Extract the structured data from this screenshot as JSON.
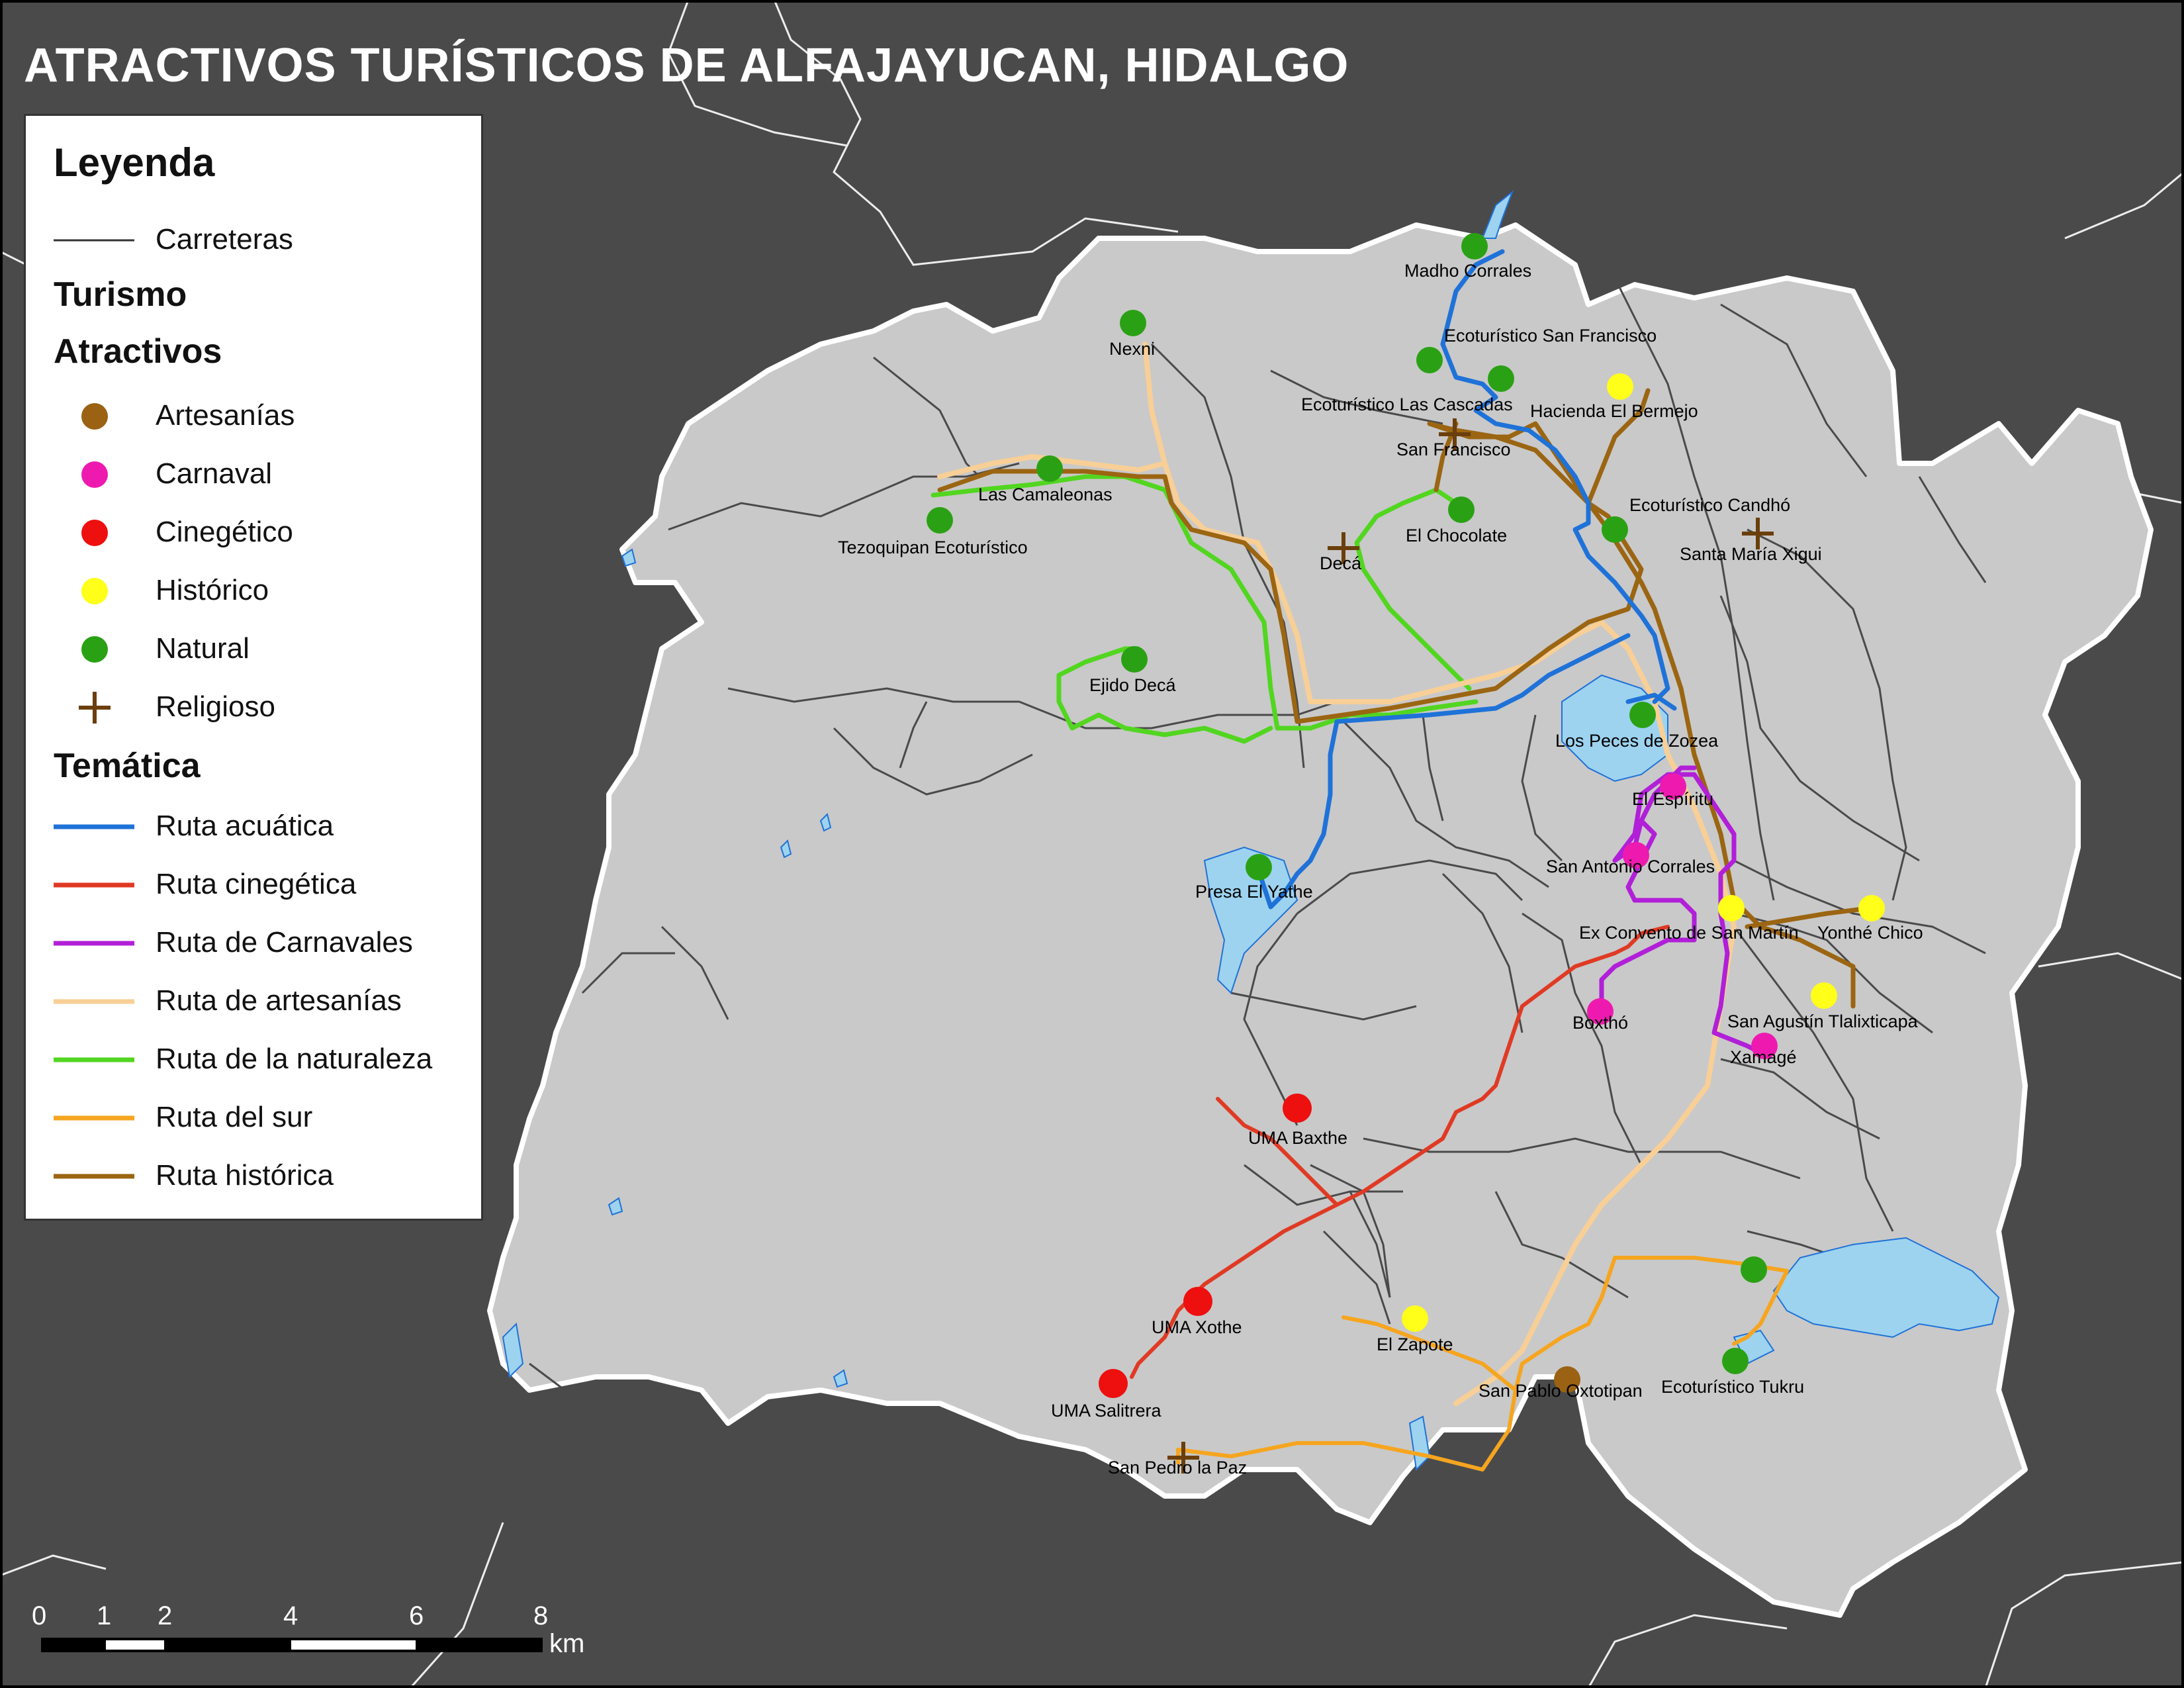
{
  "title": "ATRACTIVOS TURÍSTICOS DE ALFAJAYUCAN, HIDALGO",
  "legend": {
    "heading": "Leyenda",
    "roads_label": "Carreteras",
    "tourism_heading": "Turismo",
    "attractions_heading": "Atractivos",
    "attractions": [
      {
        "label": "Artesanías",
        "color": "#9a6212",
        "symbol": "circle"
      },
      {
        "label": "Carnaval",
        "color": "#ee1ab0",
        "symbol": "circle"
      },
      {
        "label": "Cinegético",
        "color": "#ee0f0f",
        "symbol": "circle"
      },
      {
        "label": "Histórico",
        "color": "#ffff1a",
        "symbol": "circle"
      },
      {
        "label": "Natural",
        "color": "#2aa114",
        "symbol": "circle"
      },
      {
        "label": "Religioso",
        "color": "#6b3f0c",
        "symbol": "cross"
      }
    ],
    "thematic_heading": "Temática",
    "routes": [
      {
        "label": "Ruta acuática",
        "color": "#1f72d8"
      },
      {
        "label": "Ruta cinegética",
        "color": "#e03a24"
      },
      {
        "label": "Ruta de Carnavales",
        "color": "#b11fd8"
      },
      {
        "label": "Ruta de artesanías",
        "color": "#f8cf96"
      },
      {
        "label": "Ruta de la naturaleza",
        "color": "#52d620"
      },
      {
        "label": "Ruta del sur",
        "color": "#f6a51f"
      },
      {
        "label": "Ruta histórica",
        "color": "#9b6512"
      }
    ]
  },
  "places": {
    "madho_corrales": "Madho Corrales",
    "ecoturistico_san_francisco": "Ecoturístico San Francisco",
    "nexni": "Nexni",
    "ecoturistico_las_cascadas": "Ecoturístico Las Cascadas",
    "hacienda_el_bermejo": "Hacienda El Bermejo",
    "san_francisco": "San Francisco",
    "las_camaleonas": "Las Camaleonas",
    "tezoquipan": "Tezoquipan Ecoturístico",
    "el_chocolate": "El Chocolate",
    "ecoturistico_candho": "Ecoturístico Candhó",
    "deca": "Decá",
    "santa_maria_xigui": "Santa María Xigui",
    "ejido_deca": "Ejido Decá",
    "los_peces_de_zozea": "Los Peces de Zozea",
    "el_espiritu": "El Espíritu",
    "san_antonio_corrales": "San Antonio Corrales",
    "presa_el_yathe": "Presa El Yathe",
    "ex_convento": "Ex Convento de San Martín",
    "yonthe_chico": "Yonthé Chico",
    "boxtho": "Boxthó",
    "san_agustin": "San Agustín Tlalixticapa",
    "xamage": "Xamagé",
    "uma_baxthe": "UMA Baxthe",
    "uma_xothe": "UMA Xothe",
    "el_zapote": "El Zapote",
    "san_pablo_oxtotipan": "San Pablo Oxtotipan",
    "ecoturistico_tukru": "Ecoturístico Tukru",
    "uma_salitrera": "UMA Salitrera",
    "san_pedro_la_paz": "San Pedro la Paz"
  },
  "scale_bar": {
    "ticks": [
      "0",
      "1",
      "2",
      "4",
      "6",
      "8"
    ],
    "unit": "km"
  }
}
